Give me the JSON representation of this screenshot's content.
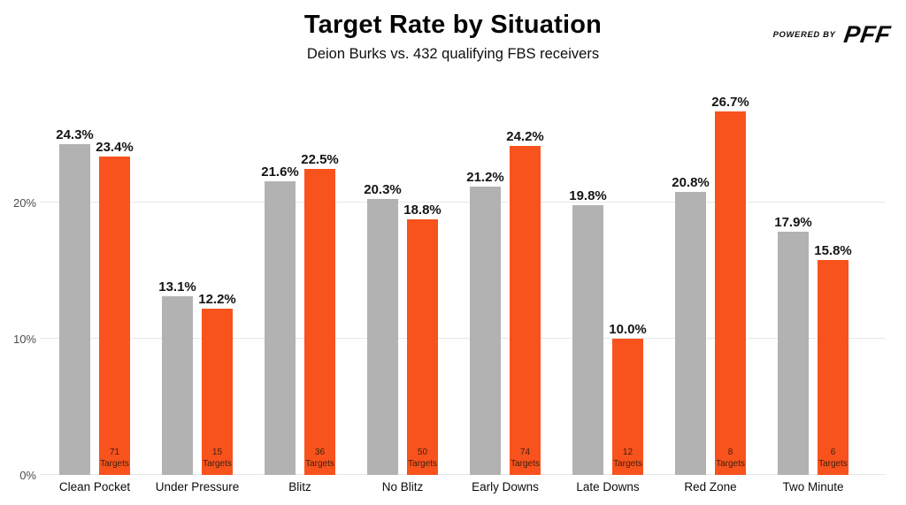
{
  "header": {
    "title": "Target Rate by Situation",
    "subtitle": "Deion Burks vs. 432 qualifying FBS receivers",
    "powered_by": "POWERED BY",
    "brand": "PFF"
  },
  "chart_data": {
    "type": "bar",
    "title": "Target Rate by Situation",
    "subtitle": "Deion Burks vs. 432 qualifying FBS receivers",
    "categories": [
      "Clean Pocket",
      "Under Pressure",
      "Blitz",
      "No Blitz",
      "Early Downs",
      "Late Downs",
      "Red Zone",
      "Two Minute"
    ],
    "series": [
      {
        "name": "gray",
        "color": "#b3b2b2",
        "values": [
          24.3,
          13.1,
          21.6,
          20.3,
          21.2,
          19.8,
          20.8,
          17.9
        ]
      },
      {
        "name": "orange",
        "color": "#f8521d",
        "values": [
          23.4,
          12.2,
          22.5,
          18.8,
          24.2,
          10.0,
          26.7,
          15.8
        ]
      }
    ],
    "targets": [
      71,
      15,
      36,
      50,
      74,
      12,
      8,
      6
    ],
    "targets_suffix": "Targets",
    "value_suffix": "%",
    "y_ticks": [
      "0%",
      "10%",
      "20%"
    ],
    "y_tick_values": [
      0,
      10,
      20
    ],
    "ylim": [
      0,
      28.4
    ],
    "grid": "horizontal",
    "legend": "none"
  },
  "palette": {
    "gridline": "#e7e7e7",
    "axis_text": "#4d4d4d",
    "value_text": "#141414",
    "targets_text": "#40220f"
  }
}
